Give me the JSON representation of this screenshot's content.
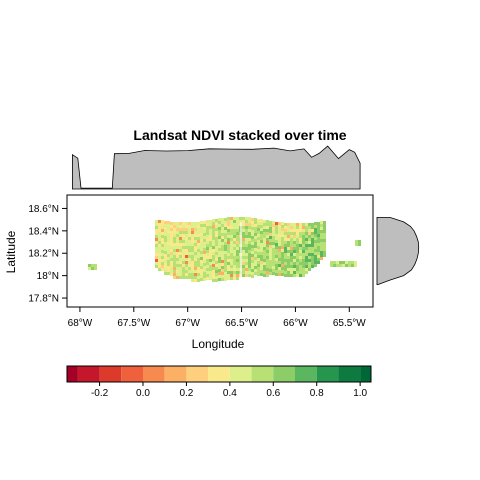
{
  "chart_data": {
    "type": "heatmap",
    "title": "Landsat NDVI stacked over time",
    "xlabel": "Longitude",
    "ylabel": "Latitude",
    "x_ticks": [
      {
        "value": -68.0,
        "label": "68°W"
      },
      {
        "value": -67.5,
        "label": "67.5°W"
      },
      {
        "value": -67.0,
        "label": "67°W"
      },
      {
        "value": -66.5,
        "label": "66.5°W"
      },
      {
        "value": -66.0,
        "label": "66°W"
      },
      {
        "value": -65.5,
        "label": "65.5°W"
      }
    ],
    "y_ticks": [
      {
        "value": 17.8,
        "label": "17.8°N"
      },
      {
        "value": 18.0,
        "label": "18°N"
      },
      {
        "value": 18.2,
        "label": "18.2°N"
      },
      {
        "value": 18.4,
        "label": "18.4°N"
      },
      {
        "value": 18.6,
        "label": "18.6°N"
      }
    ],
    "xlim": [
      -68.12,
      -65.28
    ],
    "ylim": [
      17.72,
      18.72
    ],
    "colorbar": {
      "breaks": [
        -0.3,
        -0.2,
        -0.1,
        0.0,
        0.1,
        0.2,
        0.3,
        0.4,
        0.5,
        0.6,
        0.7,
        0.8,
        0.9,
        1.0
      ],
      "colors": [
        "#a50026",
        "#c5172c",
        "#dc3b2c",
        "#ef613d",
        "#f78b4f",
        "#fcb063",
        "#fed07e",
        "#f9e98a",
        "#dcef8a",
        "#b7e075",
        "#8ccd67",
        "#5ab760",
        "#26964f",
        "#0d7a3f",
        "#006837"
      ],
      "tick_labels": [
        {
          "value": -0.2,
          "label": "-0.2"
        },
        {
          "value": 0.0,
          "label": "0.0"
        },
        {
          "value": 0.2,
          "label": "0.2"
        },
        {
          "value": 0.4,
          "label": "0.4"
        },
        {
          "value": 0.6,
          "label": "0.6"
        },
        {
          "value": 0.8,
          "label": "0.8"
        },
        {
          "value": 1.0,
          "label": "1.0"
        }
      ]
    },
    "top_marginal": {
      "description_type": "mean NDVI by longitude",
      "x": [
        -68.07,
        -68.02,
        -67.99,
        -67.7,
        -67.68,
        -67.55,
        -67.4,
        -67.2,
        -67.0,
        -66.8,
        -66.6,
        -66.4,
        -66.2,
        -66.05,
        -65.92,
        -65.85,
        -65.78,
        -65.7,
        -65.6,
        -65.5,
        -65.45,
        -65.4
      ],
      "values": [
        0.78,
        0.7,
        0.02,
        0.02,
        0.8,
        0.82,
        0.86,
        0.87,
        0.88,
        0.9,
        0.92,
        0.9,
        0.92,
        0.88,
        0.9,
        0.72,
        0.82,
        0.96,
        0.7,
        0.9,
        0.82,
        0.6
      ]
    },
    "right_marginal": {
      "description_type": "mean NDVI by latitude",
      "y": [
        18.52,
        18.48,
        18.44,
        18.4,
        18.35,
        18.3,
        18.25,
        18.2,
        18.15,
        18.1,
        18.05,
        18.0,
        17.96,
        17.92
      ],
      "values": [
        0.3,
        0.62,
        0.78,
        0.86,
        0.92,
        0.96,
        0.97,
        0.96,
        0.93,
        0.88,
        0.8,
        0.62,
        0.3,
        0.02
      ]
    },
    "colors": {
      "marginal_fill": "#bebebe",
      "frame": "#000000"
    }
  }
}
